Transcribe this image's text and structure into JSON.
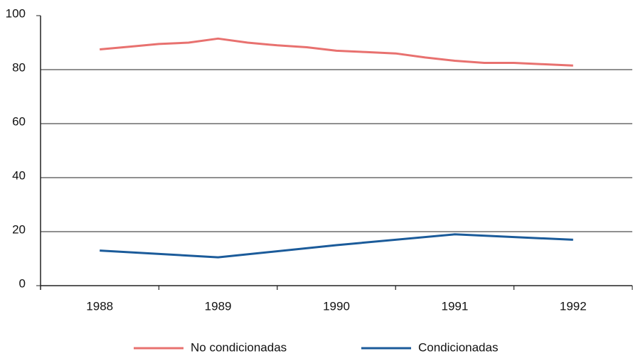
{
  "chart_data": {
    "type": "line",
    "series": [
      {
        "name": "No condicionadas",
        "color": "#e8716f",
        "x": [
          1988,
          1988.25,
          1988.5,
          1988.75,
          1989,
          1989.25,
          1989.5,
          1989.75,
          1990,
          1990.25,
          1990.5,
          1990.75,
          1991,
          1991.25,
          1991.5,
          1991.75,
          1992
        ],
        "values": [
          87.5,
          88.5,
          89.5,
          90,
          91.5,
          90,
          89,
          88.3,
          87,
          86.5,
          86,
          84.5,
          83.3,
          82.5,
          82.5,
          82,
          81.5
        ]
      },
      {
        "name": "Condicionadas",
        "color": "#1b5b9a",
        "x": [
          1988,
          1989,
          1990,
          1991,
          1992
        ],
        "values": [
          13,
          10.5,
          15,
          19,
          17
        ]
      }
    ],
    "xlim": [
      1987.5,
      1992.5
    ],
    "xticks": [
      1988,
      1989,
      1990,
      1991,
      1992
    ],
    "ylim": [
      0,
      100
    ],
    "yticks": [
      0,
      20,
      40,
      60,
      80,
      100
    ],
    "grid": true
  }
}
